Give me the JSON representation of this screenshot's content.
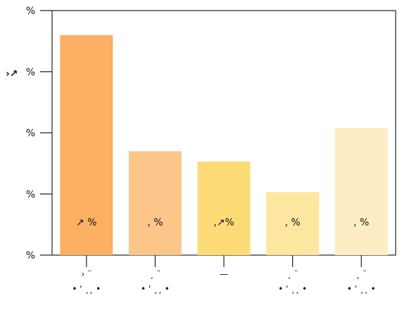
{
  "chart_data": {
    "type": "bar",
    "title": "",
    "xlabel": "",
    "ylabel": "",
    "ylim": [
      0,
      4
    ],
    "y_ticks": [
      0,
      1,
      2,
      3,
      4
    ],
    "y_tick_labels": [
      "%",
      "%",
      "%",
      "%",
      "%"
    ],
    "y_axis_glyph": "›↗",
    "grid": false,
    "categories": [
      "› ¨\n• ' ¸¸ •",
      "¸ ¨\n• ' ¸¸ •",
      "—",
      "¸ ¨\n• ' ¸¸ •",
      "¸ ¨\n• ' ¸¸ •"
    ],
    "category_labels": [
      [
        "› ¨",
        "• ' ¸¸ •"
      ],
      [
        "¸ ¨",
        "• ' ¸¸ •"
      ],
      [
        "—"
      ],
      [
        "¸ ¨",
        "• ' ¸¸ •"
      ],
      [
        "¸ ¨",
        "• ' ¸¸ •"
      ]
    ],
    "values": [
      3.6,
      1.7,
      1.53,
      1.03,
      2.08
    ],
    "data_labels": [
      "↗    %",
      ",    %",
      ",↗%",
      ",    %",
      ",    %"
    ],
    "colors": [
      "#fbb063",
      "#fcc68b",
      "#fddc78",
      "#fde6a0",
      "#feedc4"
    ]
  }
}
